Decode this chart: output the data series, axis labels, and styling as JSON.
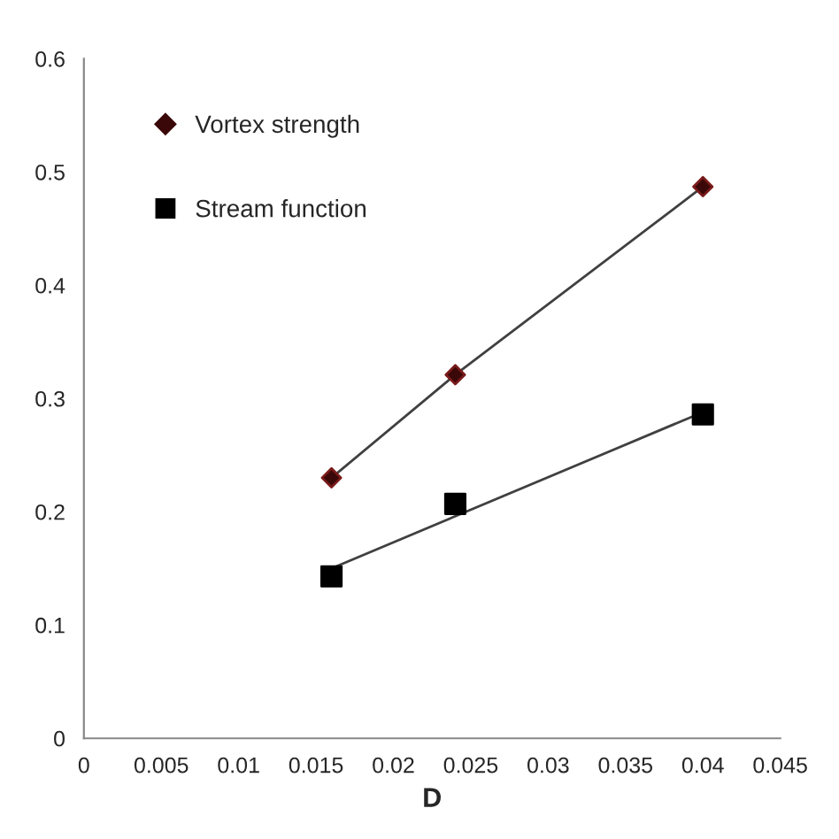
{
  "chart_data": {
    "type": "scatter",
    "xlabel": "D",
    "x": [
      0.016,
      0.024,
      0.04
    ],
    "series": [
      {
        "name": "Vortex strength",
        "color": "#3a0808",
        "values": [
          0.23,
          0.321,
          0.487
        ],
        "marker": "diamond"
      },
      {
        "name": "Stream function",
        "color": "#000000",
        "values": [
          0.143,
          0.207,
          0.286
        ],
        "marker": "square"
      },
      {
        "type": "line",
        "x": [
          0.016,
          0.04
        ],
        "values": [
          0.15,
          0.288
        ],
        "color": "#404040",
        "marker": "none"
      },
      {
        "type": "line",
        "x": [
          0.016,
          0.024,
          0.04
        ],
        "values": [
          0.23,
          0.321,
          0.487
        ],
        "color": "#404040",
        "marker": "none"
      }
    ],
    "xlim": [
      0,
      0.045
    ],
    "xticks": [
      0,
      0.005,
      0.01,
      0.015,
      0.02,
      0.025,
      0.03,
      0.035,
      0.04,
      0.045
    ],
    "ylim": [
      0,
      0.6
    ],
    "yticks": [
      0,
      0.1,
      0.2,
      0.3,
      0.4,
      0.5,
      0.6
    ],
    "grid": false,
    "legend": "top left"
  }
}
